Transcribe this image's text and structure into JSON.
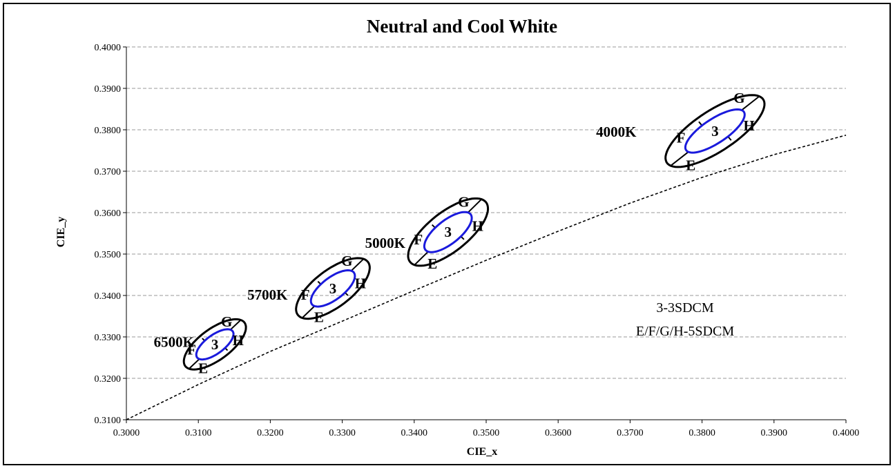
{
  "chart_data": {
    "type": "scatter",
    "title": "Neutral and Cool White",
    "xlabel": "CIE_x",
    "ylabel": "CIE_y",
    "xlim": [
      0.3,
      0.4
    ],
    "ylim": [
      0.31,
      0.4
    ],
    "x_ticks": [
      "0.3000",
      "0.3100",
      "0.3200",
      "0.3300",
      "0.3400",
      "0.3500",
      "0.3600",
      "0.3700",
      "0.3800",
      "0.3900",
      "0.4000"
    ],
    "y_ticks": [
      "0.3100",
      "0.3200",
      "0.3300",
      "0.3400",
      "0.3500",
      "0.3600",
      "0.3700",
      "0.3800",
      "0.3900",
      "0.4000"
    ],
    "grid": "horizontal dashed",
    "outer_color": "#000000",
    "inner_color": "#1a1adc",
    "blackbody_curve": {
      "style": "dashed",
      "x": [
        0.3,
        0.31,
        0.32,
        0.33,
        0.34,
        0.35,
        0.36,
        0.37,
        0.38,
        0.39,
        0.4
      ],
      "y": [
        0.31,
        0.3185,
        0.3265,
        0.3338,
        0.3412,
        0.3485,
        0.3555,
        0.3623,
        0.3685,
        0.374,
        0.3787
      ]
    },
    "regions": [
      {
        "cct": "6500K",
        "center": [
          0.3123,
          0.3282
        ],
        "outer": {
          "a": 0.0069,
          "b": 0.0028,
          "angle_deg": 58.6
        },
        "inner": {
          "a": 0.00415,
          "b": 0.00166,
          "angle_deg": 58.6
        },
        "inner_label": "3",
        "bins": [
          "E",
          "F",
          "G",
          "H"
        ]
      },
      {
        "cct": "5700K",
        "center": [
          0.3287,
          0.3417
        ],
        "outer": {
          "a": 0.0083,
          "b": 0.0033,
          "angle_deg": 59.1
        },
        "inner": {
          "a": 0.00497,
          "b": 0.00196,
          "angle_deg": 59.1
        },
        "inner_label": "3",
        "bins": [
          "E",
          "F",
          "G",
          "H"
        ]
      },
      {
        "cct": "5000K",
        "center": [
          0.3447,
          0.3553
        ],
        "outer": {
          "a": 0.0092,
          "b": 0.0035,
          "angle_deg": 59.6
        },
        "inner": {
          "a": 0.00548,
          "b": 0.00207,
          "angle_deg": 59.6
        },
        "inner_label": "3",
        "bins": [
          "E",
          "F",
          "G",
          "H"
        ]
      },
      {
        "cct": "4000K",
        "center": [
          0.3818,
          0.3797
        ],
        "outer": {
          "a": 0.0104,
          "b": 0.0038,
          "angle_deg": 53.7
        },
        "inner": {
          "a": 0.00626,
          "b": 0.00224,
          "angle_deg": 53.7
        },
        "inner_label": "3",
        "bins": [
          "E",
          "F",
          "G",
          "H"
        ]
      }
    ],
    "annotations": [
      "3-3SDCM",
      "E/F/G/H-5SDCM"
    ]
  }
}
